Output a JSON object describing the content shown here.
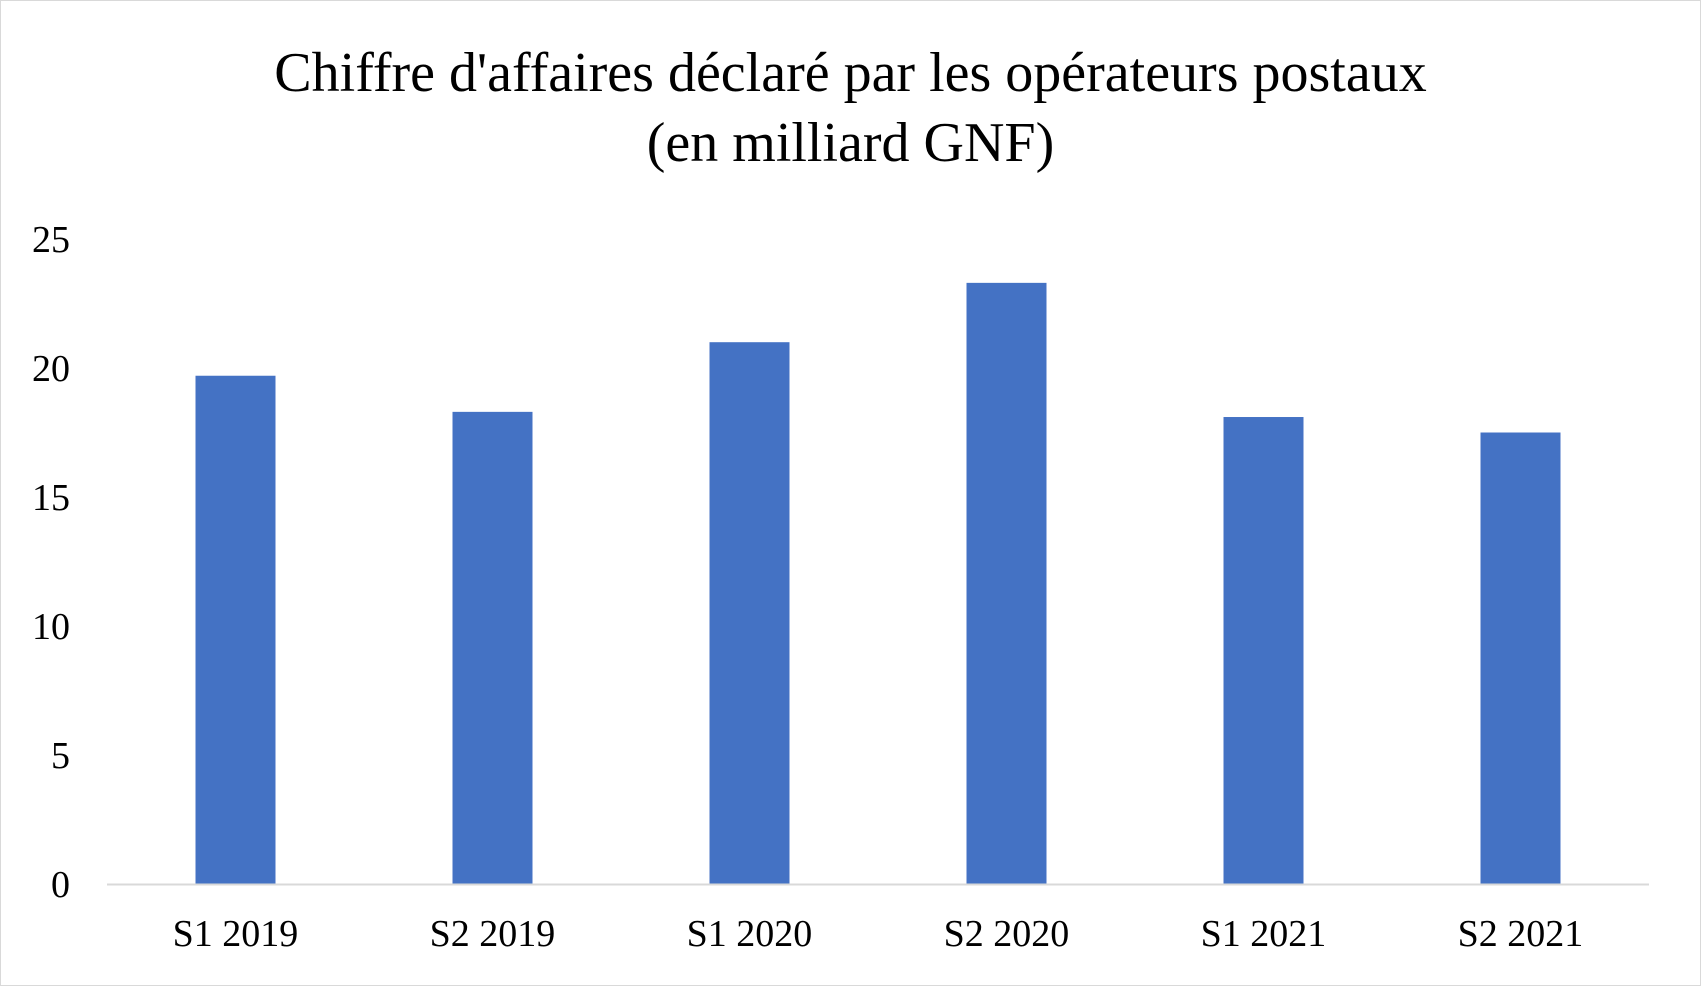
{
  "chart_data": {
    "type": "bar",
    "title": "Chiffre d'affaires déclaré par les opérateurs postaux",
    "subtitle": "(en milliard GNF)",
    "categories": [
      "S1 2019",
      "S2 2019",
      "S1 2020",
      "S2 2020",
      "S1 2021",
      "S2 2021"
    ],
    "values": [
      19.7,
      18.3,
      21.0,
      23.3,
      18.1,
      17.5
    ],
    "ylim": [
      0,
      25
    ],
    "yticks": [
      "0",
      "5",
      "10",
      "15",
      "20",
      "25"
    ],
    "xlabel": "",
    "ylabel": "",
    "grid": false,
    "legend": "none",
    "bar_color": "#4472c4",
    "axis_color": "#d9d9d9"
  }
}
